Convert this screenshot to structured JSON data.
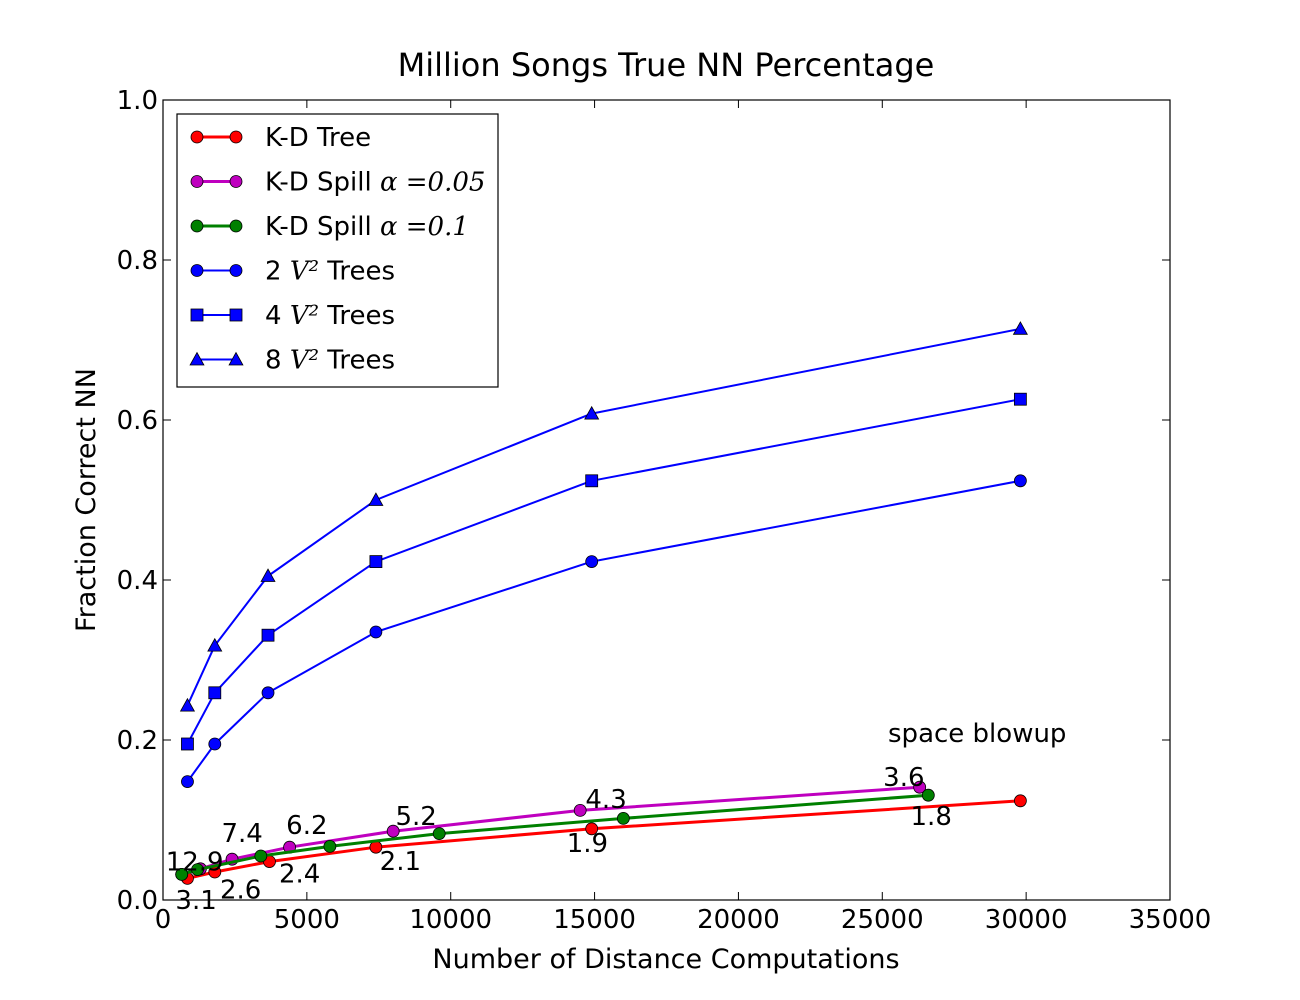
{
  "chart_data": {
    "type": "line",
    "title": "Million Songs True NN Percentage",
    "xlabel": "Number of Distance Computations",
    "ylabel": "Fraction Correct NN",
    "xlim": [
      0,
      35000
    ],
    "ylim": [
      0.0,
      1.0
    ],
    "xticks": [
      "0",
      "5000",
      "10000",
      "15000",
      "20000",
      "25000",
      "30000",
      "35000"
    ],
    "yticks": [
      "0.0",
      "0.2",
      "0.4",
      "0.6",
      "0.8",
      "1.0"
    ],
    "grid": false,
    "legend_position": "top-left",
    "series": [
      {
        "name": "K-D Tree",
        "legend_text": "K-D Tree",
        "legend_math": "",
        "color": "#ff0000",
        "marker": "circle",
        "linewidth": 3,
        "x": [
          850,
          1800,
          3700,
          7400,
          14900,
          29800
        ],
        "y": [
          0.027,
          0.035,
          0.048,
          0.066,
          0.089,
          0.124
        ]
      },
      {
        "name": "K-D Spill α =0.05",
        "legend_text": "K-D Spill ",
        "legend_math": "α =0.05",
        "color": "#bf00bf",
        "marker": "circle",
        "linewidth": 3,
        "x": [
          650,
          1300,
          2400,
          4400,
          8000,
          14500,
          26300
        ],
        "y": [
          0.032,
          0.039,
          0.051,
          0.066,
          0.086,
          0.112,
          0.141
        ]
      },
      {
        "name": "K-D Spill α =0.1",
        "legend_text": "K-D Spill ",
        "legend_math": "α =0.1",
        "color": "#008000",
        "marker": "circle",
        "linewidth": 3,
        "x": [
          650,
          1200,
          3400,
          5800,
          9600,
          16000,
          26600
        ],
        "y": [
          0.032,
          0.038,
          0.055,
          0.067,
          0.083,
          0.102,
          0.131
        ]
      },
      {
        "name": "2 V² Trees",
        "legend_text": "2 ",
        "legend_math": "V²",
        "legend_suffix": "  Trees",
        "color": "#0000ff",
        "marker": "circle",
        "linewidth": 2,
        "x": [
          850,
          1800,
          3650,
          7400,
          14900,
          29800
        ],
        "y": [
          0.148,
          0.195,
          0.259,
          0.335,
          0.423,
          0.524
        ]
      },
      {
        "name": "4 V² Trees",
        "legend_text": "4 ",
        "legend_math": "V²",
        "legend_suffix": "  Trees",
        "color": "#0000ff",
        "marker": "square",
        "linewidth": 2,
        "x": [
          850,
          1800,
          3650,
          7400,
          14900,
          29800
        ],
        "y": [
          0.195,
          0.259,
          0.331,
          0.423,
          0.524,
          0.626
        ]
      },
      {
        "name": "8 V² Trees",
        "legend_text": "8 ",
        "legend_math": "V²",
        "legend_suffix": "  Trees",
        "color": "#0000ff",
        "marker": "triangle",
        "linewidth": 2,
        "x": [
          850,
          1800,
          3650,
          7400,
          14900,
          29800
        ],
        "y": [
          0.243,
          0.318,
          0.405,
          0.5,
          0.608,
          0.714
        ]
      }
    ],
    "annotations": [
      {
        "text": "12.9",
        "x": 1100,
        "y": 0.048
      },
      {
        "text": "3.1",
        "x": 1150,
        "y": 0.0
      },
      {
        "text": "7.4",
        "x": 2750,
        "y": 0.084
      },
      {
        "text": "2.6",
        "x": 2700,
        "y": 0.013
      },
      {
        "text": "6.2",
        "x": 5000,
        "y": 0.094
      },
      {
        "text": "2.4",
        "x": 4750,
        "y": 0.033
      },
      {
        "text": "5.2",
        "x": 8800,
        "y": 0.105
      },
      {
        "text": "2.1",
        "x": 8250,
        "y": 0.049
      },
      {
        "text": "4.3",
        "x": 15400,
        "y": 0.126
      },
      {
        "text": "1.9",
        "x": 14750,
        "y": 0.071
      },
      {
        "text": "3.6",
        "x": 25750,
        "y": 0.154
      },
      {
        "text": "1.8",
        "x": 26700,
        "y": 0.105
      },
      {
        "text": "space blowup",
        "x": 28300,
        "y": 0.209
      }
    ]
  }
}
